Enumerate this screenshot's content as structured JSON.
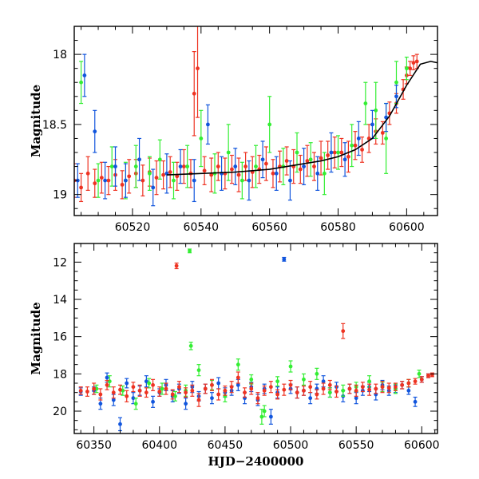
{
  "chart_data": [
    {
      "type": "scatter",
      "title": "",
      "xlabel": "",
      "ylabel": "Magnitude",
      "xlim": [
        60503,
        60609
      ],
      "ylim": [
        19.15,
        17.8
      ],
      "y_inverted": true,
      "xticks": [
        60520,
        60540,
        60560,
        60580,
        60600
      ],
      "xtick_labels": [
        "60520",
        "60540",
        "60560",
        "60580",
        "60600"
      ],
      "yticks": [
        18,
        18.5,
        19
      ],
      "ytick_labels": [
        "18",
        "18.5",
        "19"
      ],
      "grid": false,
      "legend": "none",
      "colors": {
        "red": "#ee3322",
        "green": "#33ee33",
        "blue": "#1155dd",
        "model": "#000000"
      },
      "series": [
        {
          "color": "red",
          "x": [
            60503,
            60505,
            60507,
            60509,
            60511,
            60513,
            60515,
            60517,
            60519,
            60521,
            60523,
            60525,
            60527,
            60529,
            60531,
            60533,
            60535,
            60537,
            60538,
            60539,
            60541,
            60543,
            60545,
            60547,
            60549,
            60551,
            60553,
            60555,
            60557,
            60559,
            60561,
            60563,
            60565,
            60567,
            60569,
            60571,
            60573,
            60575,
            60577,
            60579,
            60581,
            60583,
            60585,
            60587,
            60589,
            60591,
            60593,
            60595,
            60597,
            60599,
            60600,
            60601,
            60602,
            60603
          ],
          "y": [
            18.9,
            18.95,
            18.85,
            18.92,
            18.88,
            18.9,
            18.86,
            18.93,
            18.87,
            18.85,
            18.9,
            18.84,
            18.88,
            18.86,
            18.84,
            18.87,
            18.8,
            18.85,
            18.28,
            18.1,
            18.83,
            18.86,
            18.8,
            18.85,
            18.82,
            18.86,
            18.8,
            18.84,
            18.82,
            18.78,
            18.85,
            18.8,
            18.76,
            18.8,
            18.82,
            18.76,
            18.8,
            18.74,
            18.72,
            18.7,
            18.7,
            18.73,
            18.65,
            18.68,
            18.6,
            18.55,
            18.56,
            18.42,
            18.35,
            18.25,
            18.15,
            18.1,
            18.06,
            18.05
          ],
          "yerr": [
            0.12,
            0.1,
            0.12,
            0.1,
            0.11,
            0.1,
            0.11,
            0.1,
            0.12,
            0.1,
            0.11,
            0.1,
            0.12,
            0.1,
            0.11,
            0.1,
            0.12,
            0.1,
            0.3,
            0.35,
            0.1,
            0.12,
            0.1,
            0.11,
            0.1,
            0.12,
            0.1,
            0.11,
            0.1,
            0.12,
            0.1,
            0.11,
            0.1,
            0.12,
            0.1,
            0.11,
            0.1,
            0.12,
            0.1,
            0.11,
            0.1,
            0.11,
            0.1,
            0.09,
            0.1,
            0.09,
            0.08,
            0.08,
            0.07,
            0.07,
            0.06,
            0.05,
            0.05,
            0.05
          ]
        },
        {
          "color": "green",
          "x": [
            60505,
            60510,
            60514,
            60518,
            60521,
            60525,
            60528,
            60532,
            60536,
            60540,
            60544,
            60548,
            60552,
            60556,
            60560,
            60564,
            60568,
            60572,
            60576,
            60580,
            60584,
            60588,
            60591,
            60594,
            60597,
            60600
          ],
          "y": [
            18.2,
            18.9,
            18.8,
            18.9,
            18.8,
            18.85,
            18.75,
            18.9,
            18.8,
            18.6,
            18.85,
            18.7,
            18.9,
            18.8,
            18.5,
            18.8,
            18.7,
            18.75,
            18.85,
            18.7,
            18.65,
            18.35,
            18.4,
            18.6,
            18.2,
            18.1
          ],
          "yerr": [
            0.15,
            0.12,
            0.14,
            0.13,
            0.15,
            0.12,
            0.14,
            0.13,
            0.15,
            0.2,
            0.14,
            0.2,
            0.13,
            0.15,
            0.2,
            0.13,
            0.14,
            0.12,
            0.15,
            0.12,
            0.15,
            0.15,
            0.2,
            0.25,
            0.15,
            0.08
          ]
        },
        {
          "color": "blue",
          "x": [
            60504,
            60506,
            60509,
            60512,
            60515,
            60518,
            60522,
            60526,
            60530,
            60534,
            60538,
            60542,
            60546,
            60550,
            60554,
            60558,
            60562,
            60566,
            60570,
            60574,
            60578,
            60582,
            60586,
            60590,
            60594,
            60597
          ],
          "y": [
            18.9,
            18.15,
            18.55,
            18.9,
            18.8,
            18.9,
            18.75,
            18.95,
            18.85,
            18.8,
            18.9,
            18.5,
            18.85,
            18.8,
            18.9,
            18.75,
            18.85,
            18.9,
            18.8,
            18.85,
            18.7,
            18.75,
            18.6,
            18.5,
            18.45,
            18.3
          ],
          "yerr": [
            0.12,
            0.15,
            0.15,
            0.13,
            0.14,
            0.12,
            0.15,
            0.13,
            0.14,
            0.12,
            0.15,
            0.14,
            0.12,
            0.13,
            0.14,
            0.13,
            0.12,
            0.14,
            0.13,
            0.12,
            0.14,
            0.12,
            0.12,
            0.1,
            0.1,
            0.08
          ]
        }
      ],
      "model_curve": {
        "color": "model",
        "x": [
          60530,
          60540,
          60550,
          60560,
          60570,
          60575,
          60580,
          60585,
          60590,
          60595,
          60600,
          60604,
          60607,
          60609
        ],
        "y": [
          18.86,
          18.85,
          18.84,
          18.82,
          18.78,
          18.76,
          18.73,
          18.68,
          18.6,
          18.44,
          18.22,
          18.07,
          18.05,
          18.06
        ]
      }
    },
    {
      "type": "scatter",
      "title": "",
      "xlabel": "HJD−2400000",
      "ylabel": "Magnitude",
      "xlim": [
        60335,
        60612
      ],
      "ylim": [
        21.2,
        11.0
      ],
      "y_inverted": true,
      "xticks": [
        60350,
        60400,
        60450,
        60500,
        60550,
        60600
      ],
      "xtick_labels": [
        "60350",
        "60400",
        "60450",
        "60500",
        "60550",
        "60600"
      ],
      "yticks": [
        12,
        14,
        16,
        18,
        20
      ],
      "ytick_labels": [
        "12",
        "14",
        "16",
        "18",
        "20"
      ],
      "grid": false,
      "legend": "none",
      "colors": {
        "red": "#ee3322",
        "green": "#33ee33",
        "blue": "#1155dd"
      },
      "series": [
        {
          "color": "blue",
          "x": [
            60340,
            60350,
            60355,
            60360,
            60365,
            60370,
            60375,
            60380,
            60385,
            60390,
            60395,
            60400,
            60405,
            60410,
            60415,
            60420,
            60425,
            60430,
            60435,
            60440,
            60445,
            60450,
            60455,
            60460,
            60465,
            60470,
            60475,
            60480,
            60485,
            60490,
            60495,
            60500,
            60505,
            60510,
            60515,
            60520,
            60525,
            60530,
            60535,
            60540,
            60545,
            60550,
            60555,
            60560,
            60565,
            60570,
            60575,
            60580,
            60585,
            60590,
            60595,
            60600,
            60605
          ],
          "y": [
            18.95,
            18.9,
            19.6,
            18.2,
            19.4,
            20.7,
            18.5,
            19.3,
            18.9,
            18.4,
            19.5,
            19.0,
            18.6,
            19.2,
            18.8,
            19.6,
            18.7,
            19.2,
            18.8,
            19.3,
            18.5,
            19.0,
            18.9,
            18.6,
            19.3,
            18.7,
            19.4,
            18.8,
            20.3,
            19.0,
            11.85,
            18.8,
            19.0,
            18.9,
            19.3,
            18.8,
            18.4,
            19.0,
            18.7,
            19.2,
            18.8,
            19.3,
            18.9,
            18.7,
            19.1,
            18.6,
            18.9,
            18.8,
            18.6,
            18.9,
            19.5,
            18.3,
            18.1
          ],
          "yerr": [
            0.2,
            0.2,
            0.3,
            0.25,
            0.3,
            0.35,
            0.25,
            0.3,
            0.25,
            0.3,
            0.3,
            0.2,
            0.3,
            0.3,
            0.25,
            0.3,
            0.3,
            0.25,
            0.25,
            0.3,
            0.3,
            0.25,
            0.25,
            0.3,
            0.3,
            0.25,
            0.3,
            0.25,
            0.4,
            0.3,
            0.1,
            0.25,
            0.3,
            0.25,
            0.3,
            0.25,
            0.3,
            0.25,
            0.25,
            0.3,
            0.25,
            0.3,
            0.25,
            0.25,
            0.3,
            0.25,
            0.25,
            0.2,
            0.2,
            0.2,
            0.25,
            0.15,
            0.1
          ]
        },
        {
          "color": "green",
          "x": [
            60352,
            60362,
            60372,
            60382,
            60392,
            60402,
            60412,
            60420,
            60423,
            60424,
            60430,
            60440,
            60450,
            60460,
            60470,
            60478,
            60480,
            60490,
            60500,
            60510,
            60520,
            60530,
            60540,
            60550,
            60560,
            60570,
            60580,
            60590,
            60598
          ],
          "y": [
            18.8,
            18.4,
            18.9,
            19.6,
            18.5,
            18.8,
            19.2,
            18.9,
            11.4,
            16.5,
            17.8,
            18.6,
            19.2,
            17.5,
            18.3,
            20.3,
            20.0,
            18.4,
            17.6,
            18.3,
            18.0,
            19.0,
            18.9,
            18.7,
            18.4,
            18.7,
            18.8,
            18.5,
            18.0
          ],
          "yerr": [
            0.2,
            0.3,
            0.25,
            0.3,
            0.25,
            0.3,
            0.25,
            0.3,
            0.1,
            0.2,
            0.3,
            0.25,
            0.3,
            0.3,
            0.25,
            0.4,
            0.3,
            0.25,
            0.3,
            0.3,
            0.3,
            0.25,
            0.3,
            0.25,
            0.3,
            0.25,
            0.25,
            0.2,
            0.2
          ]
        },
        {
          "color": "red",
          "x": [
            60340,
            60345,
            60350,
            60355,
            60360,
            60365,
            60370,
            60375,
            60380,
            60385,
            60390,
            60395,
            60400,
            60405,
            60410,
            60413,
            60415,
            60420,
            60425,
            60430,
            60435,
            60440,
            60445,
            60450,
            60455,
            60460,
            60465,
            60470,
            60475,
            60480,
            60485,
            60490,
            60495,
            60500,
            60505,
            60510,
            60515,
            60520,
            60525,
            60530,
            60535,
            60540,
            60545,
            60550,
            60555,
            60560,
            60565,
            60570,
            60575,
            60580,
            60585,
            60590,
            60595,
            60600,
            60605,
            60608
          ],
          "y": [
            18.9,
            18.95,
            18.8,
            19.1,
            18.6,
            19.0,
            18.85,
            19.2,
            18.7,
            18.9,
            19.0,
            18.6,
            18.95,
            18.8,
            19.1,
            12.2,
            18.7,
            19.0,
            18.9,
            19.4,
            18.8,
            18.6,
            19.1,
            18.9,
            18.7,
            18.2,
            19.0,
            18.8,
            19.3,
            18.9,
            18.7,
            19.1,
            18.85,
            18.6,
            19.0,
            18.9,
            18.7,
            19.1,
            18.8,
            18.6,
            18.95,
            15.7,
            18.8,
            18.9,
            18.7,
            18.85,
            18.8,
            18.7,
            18.75,
            18.7,
            18.6,
            18.5,
            18.4,
            18.3,
            18.1,
            18.05
          ],
          "yerr": [
            0.2,
            0.25,
            0.3,
            0.3,
            0.25,
            0.3,
            0.25,
            0.3,
            0.25,
            0.3,
            0.25,
            0.3,
            0.25,
            0.3,
            0.25,
            0.15,
            0.3,
            0.25,
            0.3,
            0.35,
            0.25,
            0.3,
            0.3,
            0.25,
            0.3,
            0.3,
            0.25,
            0.3,
            0.3,
            0.25,
            0.3,
            0.25,
            0.3,
            0.25,
            0.3,
            0.25,
            0.3,
            0.25,
            0.3,
            0.25,
            0.3,
            0.4,
            0.25,
            0.3,
            0.25,
            0.3,
            0.25,
            0.3,
            0.25,
            0.2,
            0.2,
            0.2,
            0.15,
            0.15,
            0.1,
            0.1
          ]
        }
      ]
    }
  ]
}
